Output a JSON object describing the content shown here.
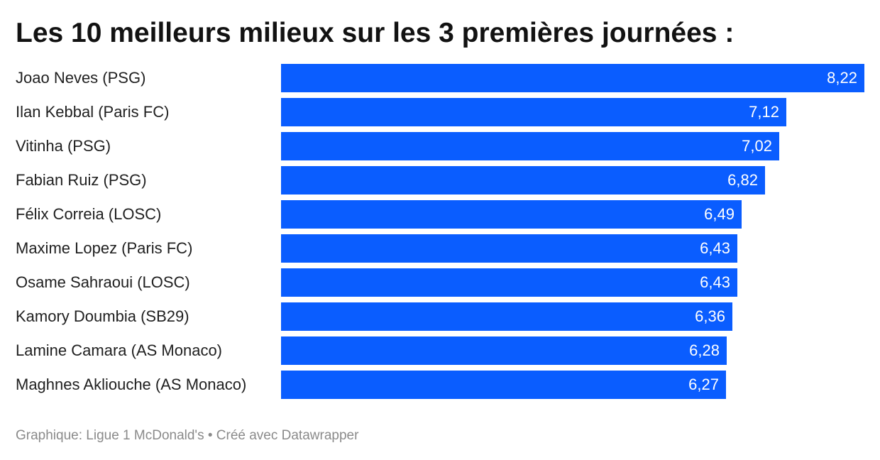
{
  "chart_data": {
    "type": "bar",
    "orientation": "horizontal",
    "title": "Les 10 meilleurs milieux sur les 3 premières journées :",
    "categories": [
      "Joao Neves (PSG)",
      "Ilan Kebbal (Paris FC)",
      "Vitinha (PSG)",
      "Fabian Ruiz (PSG)",
      "Félix Correia (LOSC)",
      "Maxime Lopez (Paris FC)",
      "Osame Sahraoui (LOSC)",
      "Kamory Doumbia (SB29)",
      "Lamine Camara (AS Monaco)",
      "Maghnes Akliouche (AS Monaco)"
    ],
    "values": [
      8.22,
      7.12,
      7.02,
      6.82,
      6.49,
      6.43,
      6.43,
      6.36,
      6.28,
      6.27
    ],
    "value_labels": [
      "8,22",
      "7,12",
      "7,02",
      "6,82",
      "6,49",
      "6,43",
      "6,43",
      "6,36",
      "6,28",
      "6,27"
    ],
    "xlim": [
      0,
      8.22
    ],
    "grid": false,
    "legend": "none",
    "bar_color": "#0a5dff",
    "value_label_color": "#ffffff"
  },
  "footer": {
    "source": "Graphique: Ligue 1 McDonald's • Créé avec Datawrapper"
  }
}
